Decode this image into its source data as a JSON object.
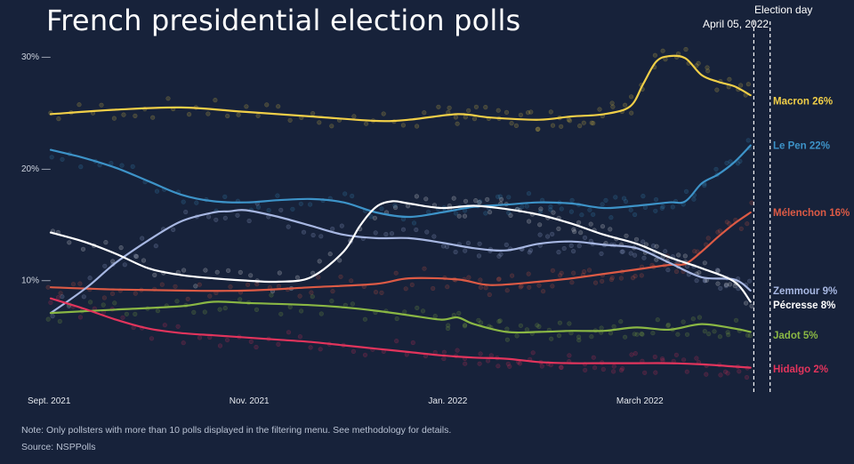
{
  "chart_data": {
    "type": "line",
    "title": "French presidential election polls",
    "election_day_label": "Election day",
    "annotation_date": "April 05, 2022",
    "note": "Note: Only pollsters with more than 10 polls displayed in the filtering menu. See methodology for details.",
    "source": "Source: NSPPolls",
    "xlabel": "",
    "ylabel": "",
    "x_domain_days": [
      0,
      220
    ],
    "ylim": [
      0,
      32
    ],
    "y_ticks": [
      {
        "value": 10,
        "label": "10% —"
      },
      {
        "value": 20,
        "label": "20% —"
      },
      {
        "value": 30,
        "label": "30% —"
      }
    ],
    "x_ticks": [
      {
        "day": 0,
        "label": "Sept. 2021"
      },
      {
        "day": 61,
        "label": "Nov. 2021"
      },
      {
        "day": 122,
        "label": "Jan. 2022"
      },
      {
        "day": 181,
        "label": "March 2022"
      }
    ],
    "markers": [
      {
        "day": 216,
        "name": "annotation-date"
      },
      {
        "day": 221,
        "name": "election-day"
      }
    ],
    "colors": {
      "background": "#17223a",
      "axis_text": "#cdd3de"
    },
    "series": [
      {
        "name": "Macron",
        "label": "Macron 26%",
        "final_value": 26,
        "color": "#f1cf48",
        "x": [
          0,
          20,
          40,
          60,
          80,
          100,
          110,
          125,
          135,
          150,
          160,
          170,
          178,
          182,
          186,
          190,
          195,
          200,
          205,
          210,
          215
        ],
        "values": [
          24.8,
          25.2,
          25.4,
          25.0,
          24.6,
          24.2,
          24.3,
          24.8,
          24.5,
          24.3,
          24.6,
          24.8,
          25.5,
          27.5,
          29.5,
          30.0,
          29.8,
          28.3,
          27.7,
          27.3,
          26.5
        ]
      },
      {
        "name": "Le Pen",
        "label": "Le Pen 22%",
        "final_value": 22,
        "color": "#3d93c8",
        "x": [
          0,
          10,
          20,
          30,
          40,
          50,
          60,
          70,
          80,
          90,
          100,
          110,
          120,
          130,
          140,
          150,
          160,
          170,
          180,
          190,
          195,
          200,
          205,
          210,
          215
        ],
        "values": [
          21.6,
          20.9,
          20.0,
          18.8,
          17.6,
          17.0,
          16.9,
          17.1,
          17.2,
          16.9,
          16.0,
          15.6,
          16.0,
          16.5,
          16.7,
          16.9,
          16.8,
          16.4,
          16.6,
          16.9,
          17.0,
          18.6,
          19.4,
          20.5,
          22.0
        ]
      },
      {
        "name": "Mélenchon",
        "label": "Mélenchon 16%",
        "final_value": 16,
        "color": "#dc5a45",
        "x": [
          0,
          20,
          40,
          60,
          80,
          100,
          110,
          125,
          135,
          150,
          160,
          170,
          180,
          190,
          195,
          200,
          205,
          210,
          215
        ],
        "values": [
          9.3,
          9.1,
          9.0,
          9.0,
          9.3,
          9.6,
          10.1,
          10.0,
          9.5,
          9.8,
          10.1,
          10.5,
          10.9,
          11.3,
          11.4,
          12.5,
          13.8,
          15.0,
          16.0
        ]
      },
      {
        "name": "Zemmour",
        "label": "Zemmour 9%",
        "final_value": 9,
        "color": "#a7b7e2",
        "x": [
          0,
          5,
          12,
          20,
          30,
          40,
          50,
          55,
          60,
          70,
          80,
          90,
          100,
          110,
          120,
          130,
          140,
          150,
          160,
          170,
          180,
          190,
          200,
          210,
          215
        ],
        "values": [
          7.0,
          8.0,
          9.5,
          11.5,
          13.5,
          15.2,
          16.0,
          16.1,
          16.2,
          15.6,
          14.8,
          14.0,
          13.7,
          13.7,
          13.3,
          12.8,
          12.6,
          13.2,
          13.4,
          13.1,
          12.8,
          11.5,
          10.2,
          10.0,
          9.0
        ]
      },
      {
        "name": "Pécresse",
        "label": "Pécresse 8%",
        "final_value": 8,
        "color": "#ffffff",
        "x": [
          0,
          10,
          20,
          30,
          40,
          50,
          60,
          70,
          80,
          90,
          95,
          100,
          105,
          110,
          120,
          130,
          140,
          150,
          160,
          170,
          180,
          190,
          200,
          210,
          215
        ],
        "values": [
          14.2,
          13.4,
          12.3,
          11.0,
          10.4,
          10.1,
          9.9,
          9.8,
          10.2,
          12.5,
          14.8,
          16.5,
          17.0,
          16.8,
          16.4,
          16.6,
          16.3,
          15.8,
          15.0,
          14.0,
          13.2,
          12.0,
          11.0,
          9.8,
          8.0
        ]
      },
      {
        "name": "Jadot",
        "label": "Jadot 5%",
        "final_value": 5,
        "color": "#8ab744",
        "x": [
          0,
          20,
          40,
          50,
          60,
          80,
          90,
          100,
          110,
          120,
          125,
          130,
          140,
          150,
          160,
          170,
          180,
          190,
          200,
          210,
          215
        ],
        "values": [
          7.0,
          7.3,
          7.6,
          8.0,
          7.9,
          7.7,
          7.5,
          7.2,
          6.8,
          6.4,
          6.6,
          6.0,
          5.3,
          5.3,
          5.4,
          5.4,
          5.7,
          5.5,
          6.0,
          5.6,
          5.3
        ]
      },
      {
        "name": "Hidalgo",
        "label": "Hidalgo 2%",
        "final_value": 2,
        "color": "#e2345c",
        "x": [
          0,
          10,
          20,
          30,
          40,
          50,
          60,
          70,
          80,
          90,
          100,
          110,
          120,
          130,
          140,
          150,
          160,
          170,
          180,
          190,
          200,
          210,
          215
        ],
        "values": [
          8.3,
          7.4,
          6.4,
          5.6,
          5.2,
          5.0,
          4.8,
          4.6,
          4.4,
          4.1,
          3.8,
          3.5,
          3.2,
          3.0,
          2.9,
          2.6,
          2.5,
          2.5,
          2.5,
          2.5,
          2.4,
          2.2,
          2.1
        ]
      }
    ]
  }
}
